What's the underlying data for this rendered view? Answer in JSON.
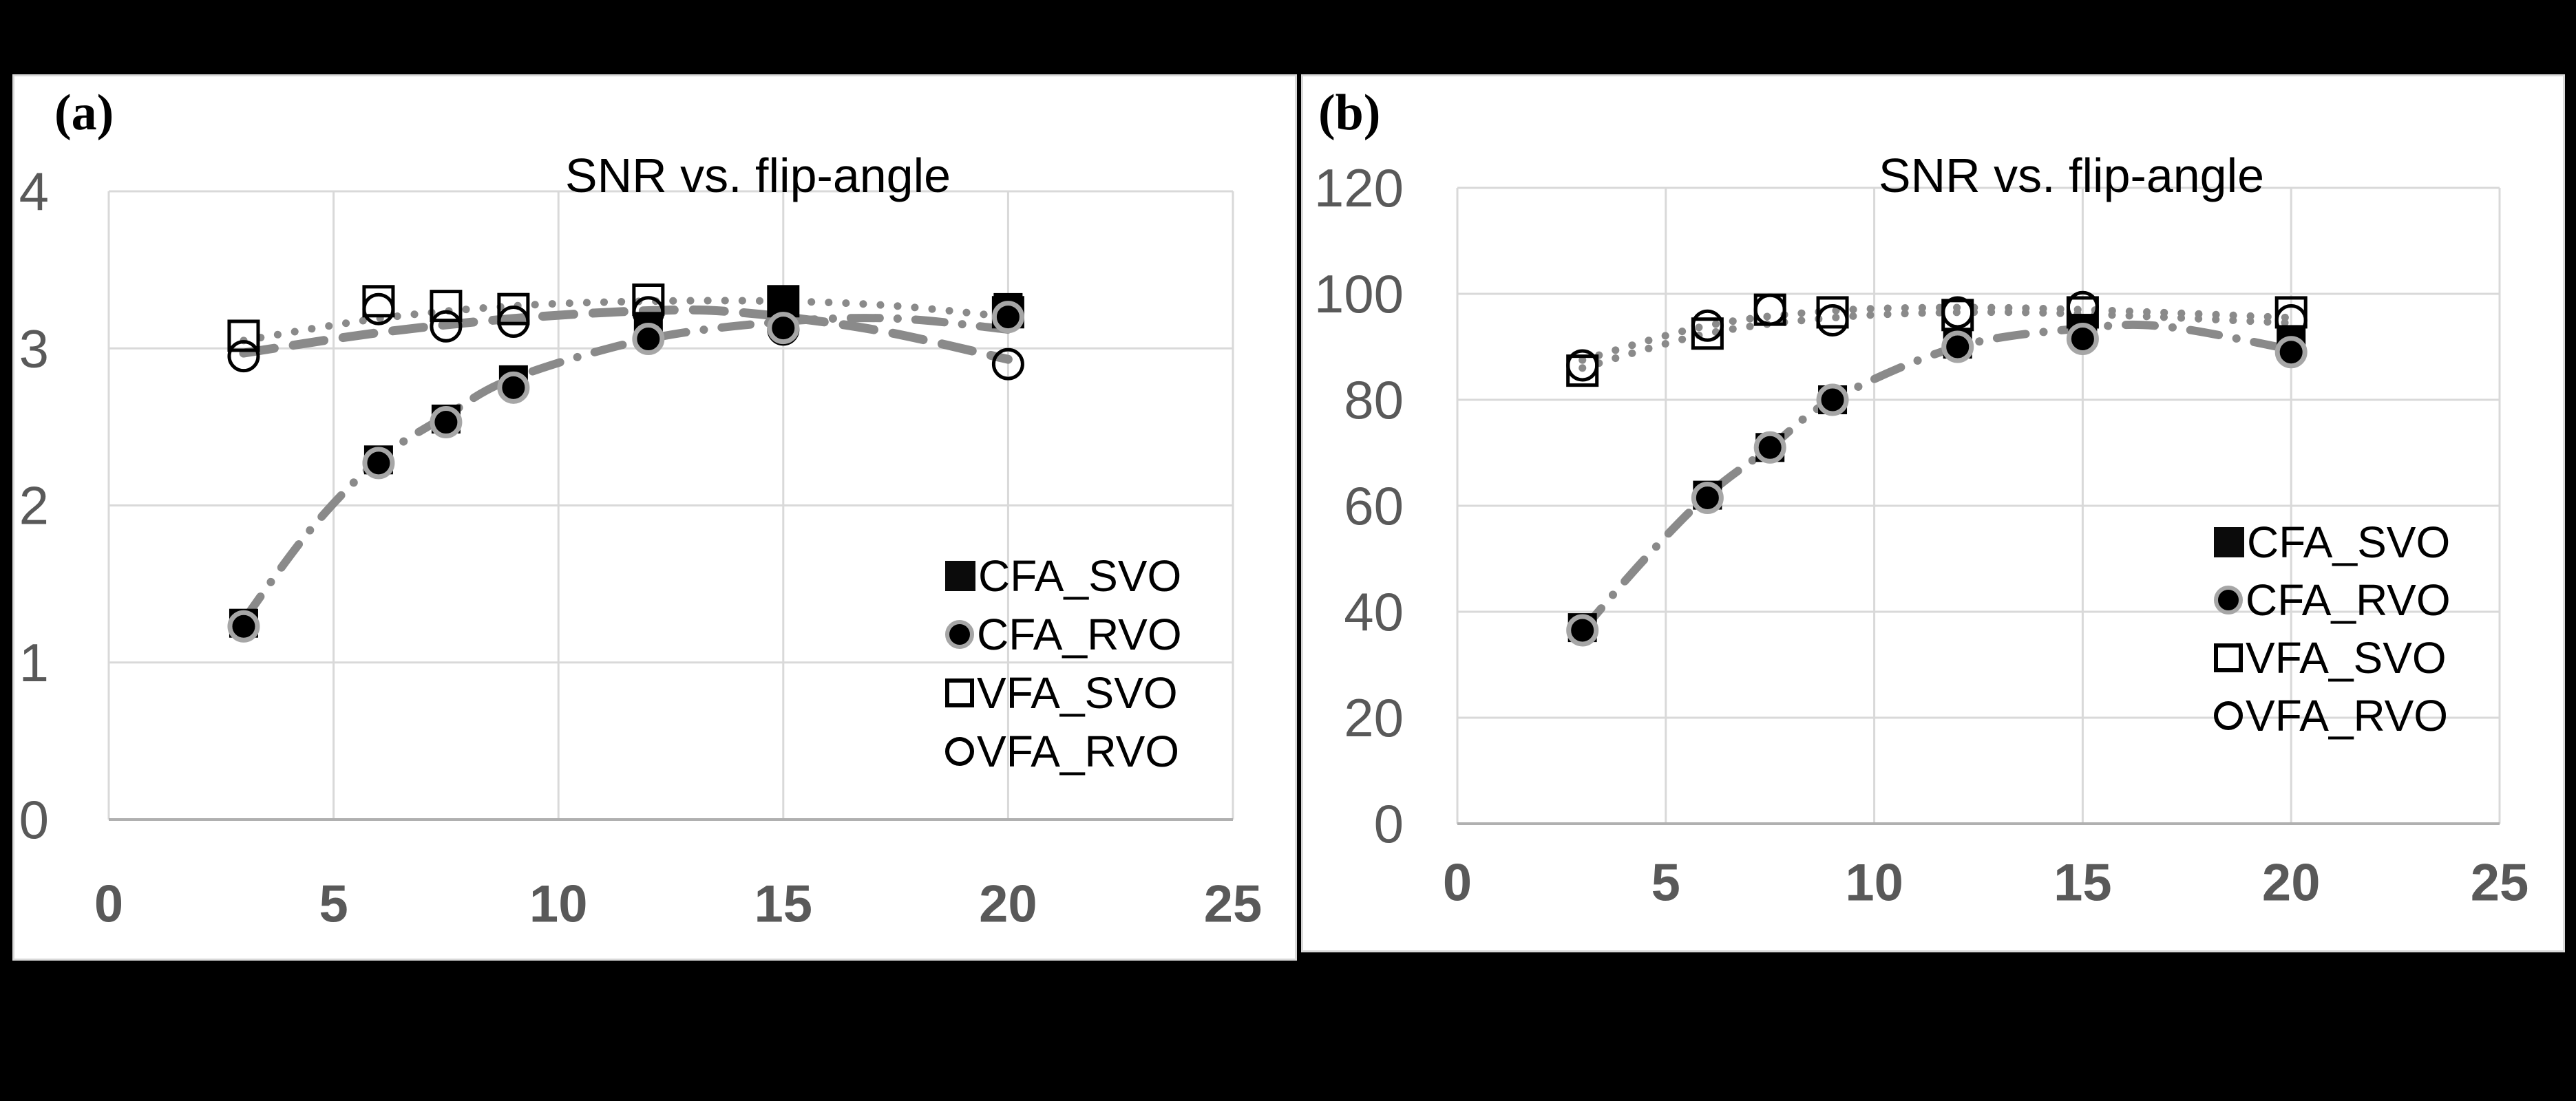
{
  "page": {
    "background": "#000000",
    "panel_background": "#ffffff",
    "panel_border_color": "#d9d9d9",
    "gridline_color": "#d9d9d9",
    "axis_line_color": "#b0b0b0",
    "tick_label_color": "#595959",
    "trendline_color": "#8a8a8a",
    "marker_halo_color": "#a6a6a6"
  },
  "chart_data": [
    {
      "type": "scatter",
      "panel_label": "(a)",
      "title": "SNR vs. flip-angle",
      "xlabel": "",
      "ylabel": "",
      "xlim": [
        0,
        25
      ],
      "ylim": [
        0,
        4
      ],
      "x_ticks": [
        "0",
        "5",
        "10",
        "15",
        "20",
        "25"
      ],
      "x_tick_values": [
        0,
        5,
        10,
        15,
        20,
        25
      ],
      "y_ticks": [
        "0",
        "1",
        "2",
        "3",
        "4"
      ],
      "y_tick_values": [
        0,
        1,
        2,
        3,
        4
      ],
      "grid": true,
      "legend_position": "lower-right",
      "x": [
        3,
        6,
        7.5,
        9,
        12,
        15,
        20
      ],
      "series": [
        {
          "name": "CFA_SVO",
          "marker": "filled-square",
          "values": [
            1.25,
            2.29,
            2.55,
            2.8,
            3.14,
            3.3,
            3.26
          ]
        },
        {
          "name": "CFA_RVO",
          "marker": "filled-circle",
          "values": [
            1.23,
            2.27,
            2.53,
            2.75,
            3.06,
            3.13,
            3.2
          ]
        },
        {
          "name": "VFA_SVO",
          "marker": "open-square",
          "values": [
            3.08,
            3.3,
            3.27,
            3.25,
            3.31,
            3.3,
            3.23
          ]
        },
        {
          "name": "VFA_RVO",
          "marker": "open-circle",
          "values": [
            2.95,
            3.25,
            3.14,
            3.17,
            3.23,
            3.12,
            2.9
          ]
        }
      ],
      "trendlines": [
        {
          "for": "VFA_SVO",
          "style": "dotted",
          "points": [
            [
              3,
              3.05
            ],
            [
              6,
              3.19
            ],
            [
              9,
              3.27
            ],
            [
              12,
              3.3
            ],
            [
              15,
              3.3
            ],
            [
              17.5,
              3.27
            ],
            [
              20,
              3.2
            ]
          ]
        },
        {
          "for": "VFA_RVO",
          "style": "dashed",
          "points": [
            [
              3,
              2.97
            ],
            [
              6,
              3.1
            ],
            [
              9,
              3.19
            ],
            [
              12,
              3.24
            ],
            [
              14,
              3.23
            ],
            [
              17,
              3.12
            ],
            [
              20,
              2.93
            ]
          ]
        },
        {
          "for": "CFA",
          "style": "dashdot",
          "points": [
            [
              3,
              1.27
            ],
            [
              4.5,
              1.85
            ],
            [
              6,
              2.29
            ],
            [
              7.5,
              2.57
            ],
            [
              9,
              2.81
            ],
            [
              12,
              3.06
            ],
            [
              15,
              3.17
            ],
            [
              17.5,
              3.19
            ],
            [
              20,
              3.12
            ]
          ]
        }
      ]
    },
    {
      "type": "scatter",
      "panel_label": "(b)",
      "title": "SNR vs. flip-angle",
      "xlabel": "",
      "ylabel": "",
      "xlim": [
        0,
        25
      ],
      "ylim": [
        0,
        120
      ],
      "x_ticks": [
        "0",
        "5",
        "10",
        "15",
        "20",
        "25"
      ],
      "x_tick_values": [
        0,
        5,
        10,
        15,
        20,
        25
      ],
      "y_ticks": [
        "0",
        "20",
        "40",
        "60",
        "80",
        "100",
        "120"
      ],
      "y_tick_values": [
        0,
        20,
        40,
        60,
        80,
        100,
        120
      ],
      "grid": true,
      "legend_position": "lower-right",
      "x": [
        3,
        6,
        7.5,
        9,
        12,
        15,
        20
      ],
      "series": [
        {
          "name": "CFA_SVO",
          "marker": "filled-square",
          "values": [
            37,
            62,
            71,
            80,
            90.5,
            93.5,
            91
          ]
        },
        {
          "name": "CFA_RVO",
          "marker": "filled-circle",
          "values": [
            36.5,
            61.5,
            71,
            80,
            90,
            91.5,
            89
          ]
        },
        {
          "name": "VFA_SVO",
          "marker": "open-square",
          "values": [
            85.5,
            92.5,
            97,
            96.5,
            96,
            96.5,
            96.5
          ]
        },
        {
          "name": "VFA_RVO",
          "marker": "open-circle",
          "values": [
            86.5,
            94,
            97,
            95,
            96.5,
            97.5,
            95
          ]
        }
      ],
      "trendlines": [
        {
          "for": "VFA_SVO",
          "style": "dotted",
          "points": [
            [
              3,
              86
            ],
            [
              6,
              92.5
            ],
            [
              9,
              95.5
            ],
            [
              12,
              96.5
            ],
            [
              15,
              96.2
            ],
            [
              20,
              94.5
            ]
          ]
        },
        {
          "for": "VFA_RVO",
          "style": "dotted",
          "points": [
            [
              3,
              87.5
            ],
            [
              6,
              94
            ],
            [
              9,
              96.8
            ],
            [
              12,
              97.4
            ],
            [
              15,
              97
            ],
            [
              20,
              95.5
            ]
          ]
        },
        {
          "for": "CFA",
          "style": "dashdot",
          "points": [
            [
              3,
              36.5
            ],
            [
              4.5,
              50
            ],
            [
              6,
              62
            ],
            [
              7.5,
              71
            ],
            [
              9,
              80
            ],
            [
              12,
              90
            ],
            [
              15,
              93.5
            ],
            [
              17,
              93.8
            ],
            [
              20,
              89.5
            ]
          ]
        }
      ]
    }
  ]
}
